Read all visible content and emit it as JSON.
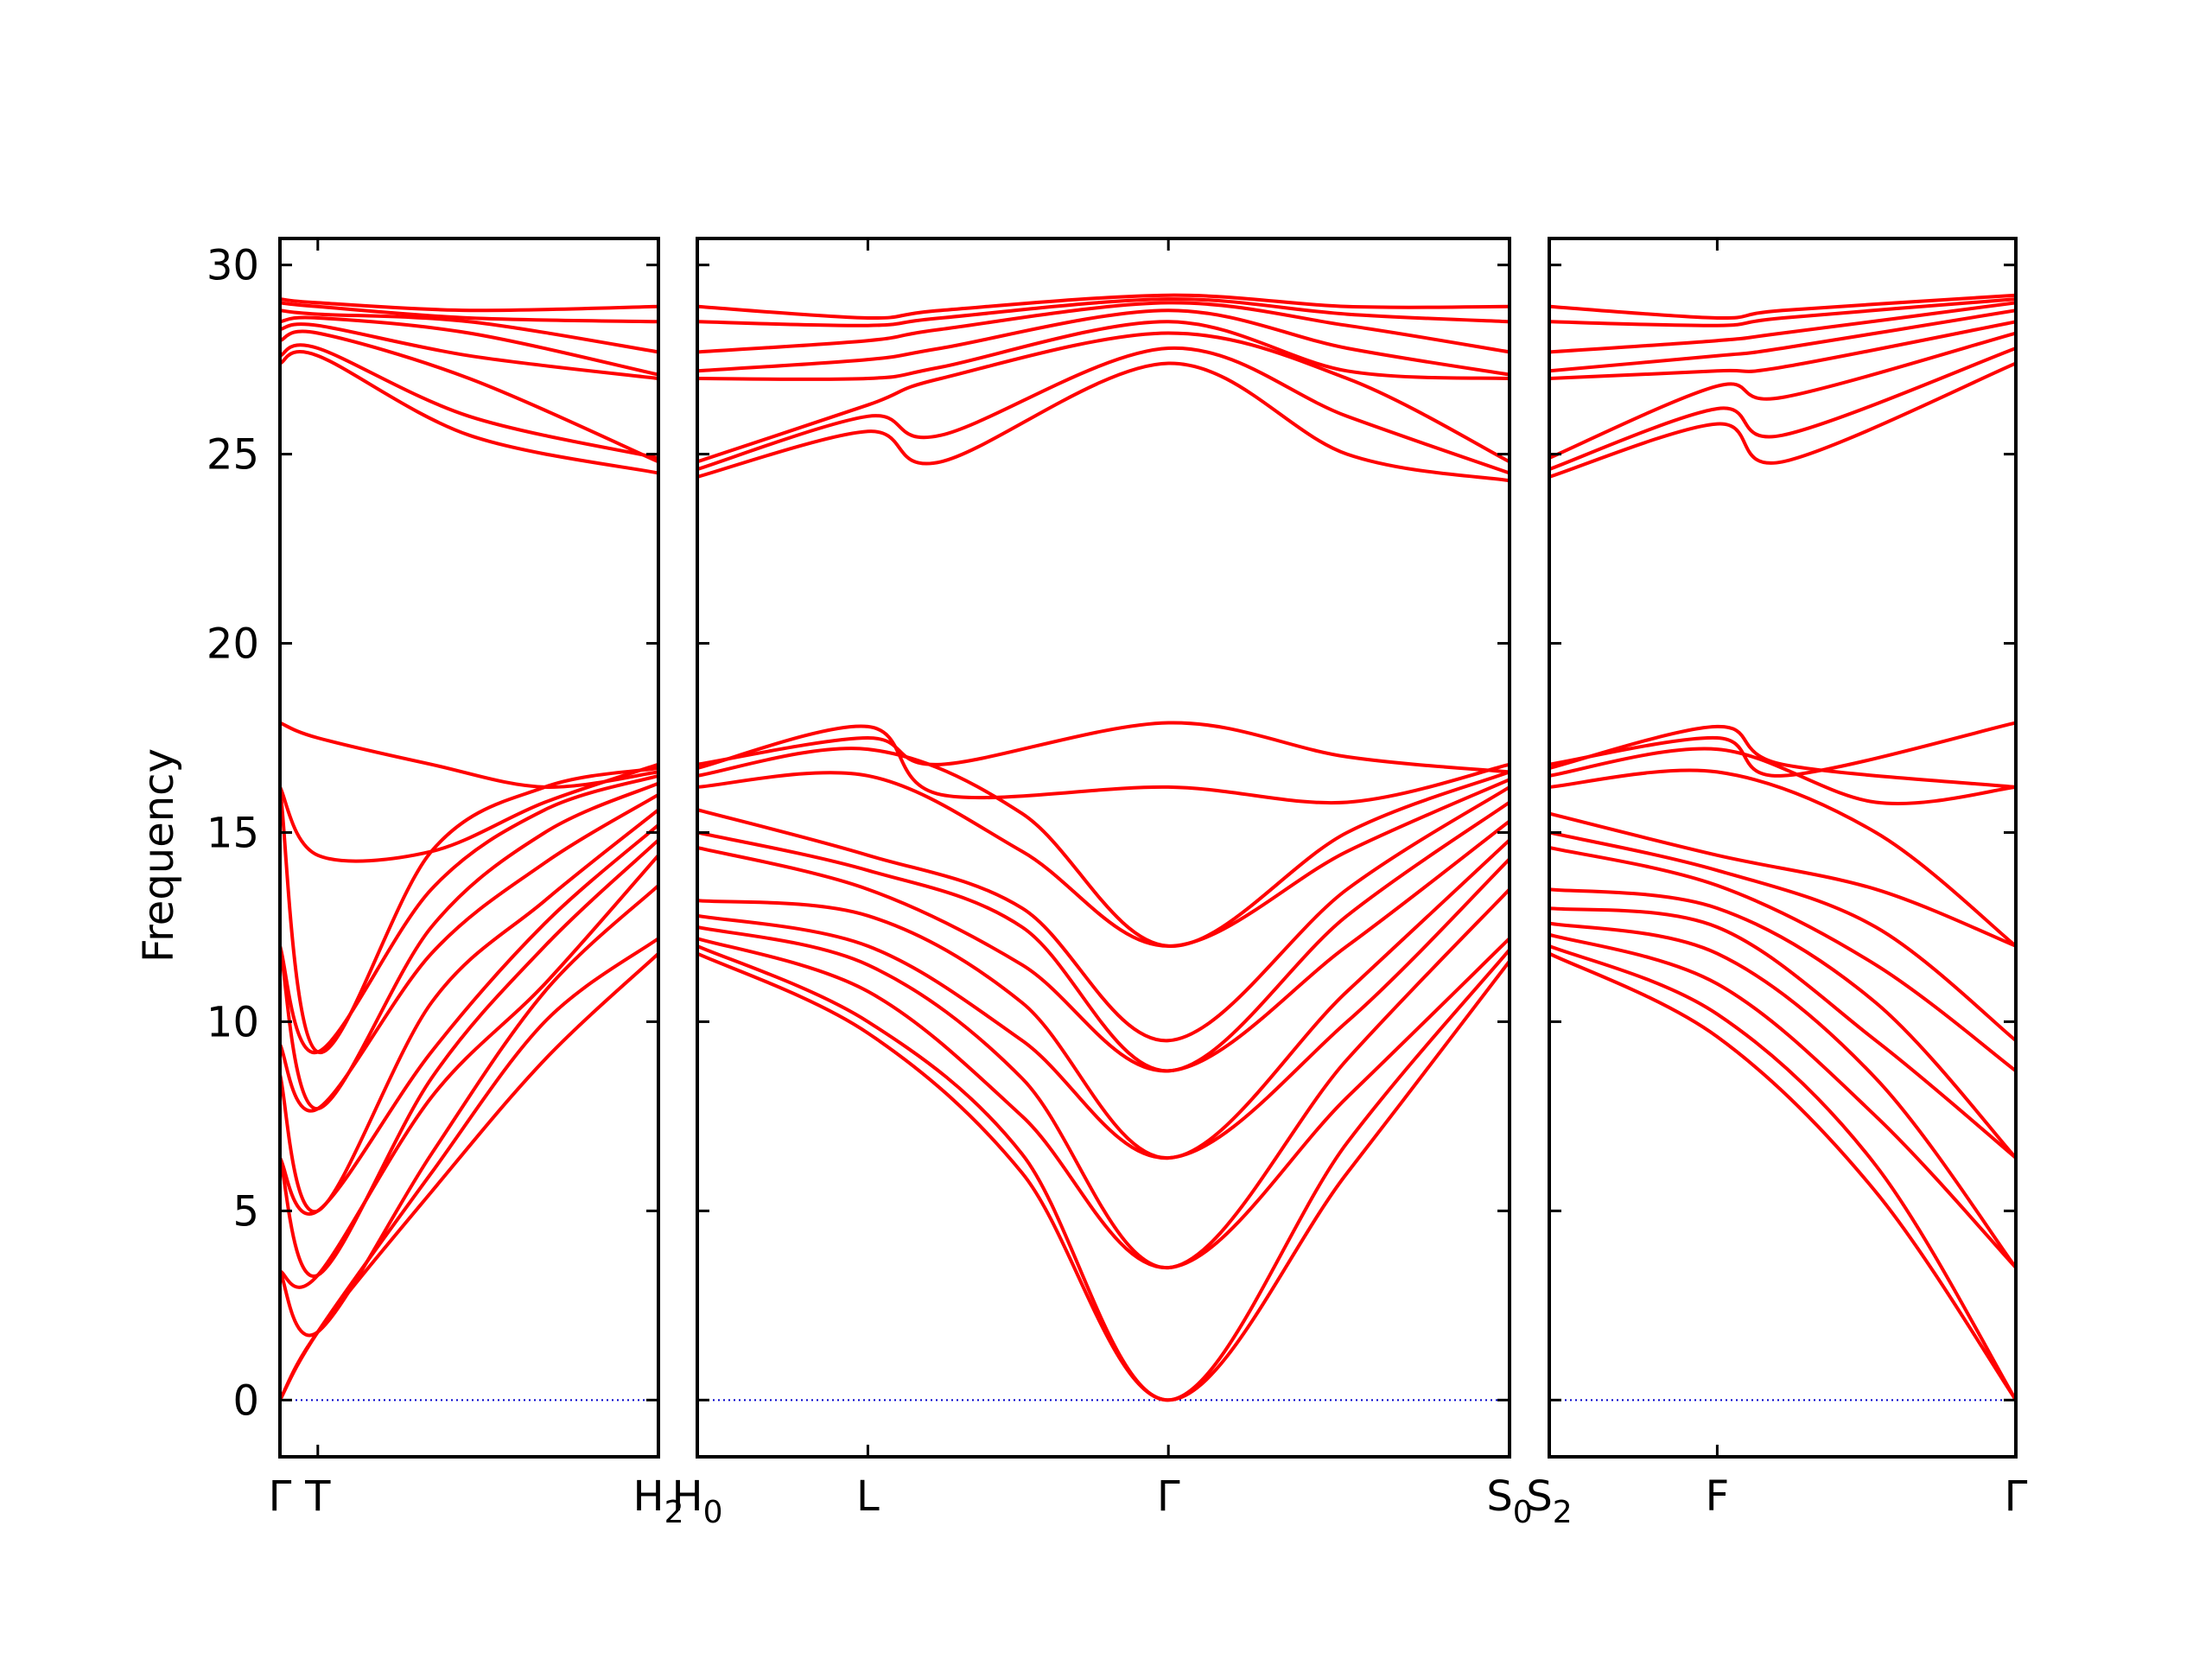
{
  "chart_data": {
    "type": "line",
    "title": "",
    "xlabel": "",
    "ylabel": "Frequency",
    "ylim": [
      -1.5,
      30.7
    ],
    "yticks": [
      0,
      5,
      10,
      15,
      20,
      25,
      30
    ],
    "grid": false,
    "zero_line": {
      "y": 0,
      "color": "#0000cc",
      "style": "dotted"
    },
    "colors": {
      "band": "#ff0000",
      "frame": "#000000"
    },
    "panels": [
      {
        "name": "panel-1",
        "xlim": [
          0,
          1
        ],
        "xticks": [
          {
            "x": 0.0,
            "label": "Γ"
          },
          {
            "x": 0.1,
            "label": "T"
          },
          {
            "x": 1.0,
            "label": "H",
            "sub": "2"
          }
        ],
        "bands": [
          {
            "x": [
              0,
              0.1,
              0.4,
              0.7,
              1.0
            ],
            "y": [
              0,
              1.8,
              5.5,
              9.0,
              11.8
            ]
          },
          {
            "x": [
              0,
              0.1,
              0.4,
              0.7,
              1.0
            ],
            "y": [
              0,
              1.8,
              6.0,
              10.0,
              12.2
            ]
          },
          {
            "x": [
              0,
              0.1,
              0.4,
              0.7,
              1.0
            ],
            "y": [
              3.4,
              1.8,
              6.5,
              10.8,
              13.6
            ]
          },
          {
            "x": [
              0,
              0.1,
              0.4,
              0.7,
              1.0
            ],
            "y": [
              3.4,
              3.3,
              8.0,
              11.0,
              14.4
            ]
          },
          {
            "x": [
              0,
              0.1,
              0.4,
              0.7,
              1.0
            ],
            "y": [
              6.4,
              3.3,
              8.5,
              12.0,
              14.8
            ]
          },
          {
            "x": [
              0,
              0.1,
              0.4,
              0.7,
              1.0
            ],
            "y": [
              6.4,
              5.0,
              9.2,
              12.6,
              15.2
            ]
          },
          {
            "x": [
              0,
              0.1,
              0.4,
              0.7,
              1.0
            ],
            "y": [
              8.6,
              5.0,
              10.5,
              13.2,
              15.6
            ]
          },
          {
            "x": [
              0,
              0.1,
              0.4,
              0.7,
              1.0
            ],
            "y": [
              9.4,
              7.7,
              11.8,
              14.2,
              16.0
            ]
          },
          {
            "x": [
              0,
              0.1,
              0.4,
              0.7,
              1.0
            ],
            "y": [
              12.0,
              7.7,
              12.5,
              15.0,
              16.3
            ]
          },
          {
            "x": [
              0,
              0.1,
              0.4,
              0.7,
              1.0
            ],
            "y": [
              12.0,
              9.2,
              13.5,
              15.6,
              16.5
            ]
          },
          {
            "x": [
              0,
              0.1,
              0.4,
              0.7,
              1.0
            ],
            "y": [
              16.2,
              9.2,
              14.5,
              16.2,
              16.7
            ]
          },
          {
            "x": [
              0,
              0.1,
              0.4,
              0.7,
              1.0
            ],
            "y": [
              16.2,
              14.4,
              14.5,
              15.8,
              16.8
            ]
          },
          {
            "x": [
              0,
              0.1,
              0.4,
              0.7,
              1.0
            ],
            "y": [
              17.9,
              17.5,
              16.8,
              16.2,
              16.6
            ]
          },
          {
            "x": [
              0,
              0.1,
              0.5,
              1.0
            ],
            "y": [
              27.4,
              27.6,
              25.5,
              24.5
            ]
          },
          {
            "x": [
              0,
              0.1,
              0.5,
              1.0
            ],
            "y": [
              27.6,
              27.8,
              26.0,
              24.9
            ]
          },
          {
            "x": [
              0,
              0.1,
              0.5,
              1.0
            ],
            "y": [
              28.0,
              28.2,
              27.0,
              24.8
            ]
          },
          {
            "x": [
              0,
              0.1,
              0.5,
              1.0
            ],
            "y": [
              28.3,
              28.4,
              27.6,
              27.0
            ]
          },
          {
            "x": [
              0,
              0.1,
              0.5,
              1.0
            ],
            "y": [
              28.5,
              28.6,
              28.2,
              27.1
            ]
          },
          {
            "x": [
              0,
              0.1,
              0.5,
              1.0
            ],
            "y": [
              28.8,
              28.7,
              28.5,
              27.7
            ]
          },
          {
            "x": [
              0,
              0.1,
              0.5,
              1.0
            ],
            "y": [
              29.0,
              28.9,
              28.6,
              28.5
            ]
          },
          {
            "x": [
              0,
              0.1,
              0.5,
              1.0
            ],
            "y": [
              29.1,
              29.0,
              28.8,
              28.9
            ]
          }
        ]
      },
      {
        "name": "panel-2",
        "xlim": [
          0,
          1
        ],
        "xticks": [
          {
            "x": 0.0,
            "label": "H",
            "sub": "0"
          },
          {
            "x": 0.21,
            "label": "L"
          },
          {
            "x": 0.58,
            "label": "Γ"
          },
          {
            "x": 1.0,
            "label": "S",
            "sub": "0"
          }
        ],
        "bands": [
          {
            "x": [
              0,
              0.21,
              0.4,
              0.58,
              0.8,
              1.0
            ],
            "y": [
              11.8,
              9.7,
              6.0,
              0,
              6.0,
              11.6
            ]
          },
          {
            "x": [
              0,
              0.21,
              0.4,
              0.58,
              0.8,
              1.0
            ],
            "y": [
              12.0,
              10.0,
              6.5,
              0,
              6.8,
              11.9
            ]
          },
          {
            "x": [
              0,
              0.21,
              0.4,
              0.58,
              0.8,
              1.0
            ],
            "y": [
              12.2,
              10.8,
              7.5,
              3.5,
              8.0,
              12.2
            ]
          },
          {
            "x": [
              0,
              0.21,
              0.4,
              0.58,
              0.8,
              1.0
            ],
            "y": [
              12.5,
              11.5,
              8.5,
              3.5,
              9.0,
              13.5
            ]
          },
          {
            "x": [
              0,
              0.21,
              0.4,
              0.58,
              0.8,
              1.0
            ],
            "y": [
              12.8,
              12.0,
              9.5,
              6.4,
              10.0,
              14.3
            ]
          },
          {
            "x": [
              0,
              0.21,
              0.4,
              0.58,
              0.8,
              1.0
            ],
            "y": [
              13.2,
              12.8,
              10.5,
              6.4,
              10.8,
              14.8
            ]
          },
          {
            "x": [
              0,
              0.21,
              0.4,
              0.58,
              0.8,
              1.0
            ],
            "y": [
              14.6,
              13.5,
              11.5,
              8.7,
              12.0,
              15.3
            ]
          },
          {
            "x": [
              0,
              0.21,
              0.4,
              0.58,
              0.8,
              1.0
            ],
            "y": [
              15.0,
              14.0,
              12.5,
              8.7,
              12.8,
              15.8
            ]
          },
          {
            "x": [
              0,
              0.21,
              0.4,
              0.58,
              0.8,
              1.0
            ],
            "y": [
              15.6,
              14.4,
              13.0,
              9.5,
              13.5,
              16.2
            ]
          },
          {
            "x": [
              0,
              0.21,
              0.4,
              0.58,
              0.8,
              1.0
            ],
            "y": [
              16.2,
              16.5,
              14.5,
              12.0,
              14.5,
              16.4
            ]
          },
          {
            "x": [
              0,
              0.21,
              0.4,
              0.58,
              0.8,
              1.0
            ],
            "y": [
              16.5,
              17.2,
              15.5,
              12.0,
              15.0,
              16.6
            ]
          },
          {
            "x": [
              0,
              0.21,
              0.3,
              0.58,
              0.8,
              1.0
            ],
            "y": [
              16.7,
              17.8,
              16.0,
              16.2,
              15.8,
              16.8
            ]
          },
          {
            "x": [
              0,
              0.21,
              0.3,
              0.58,
              0.8,
              1.0
            ],
            "y": [
              16.8,
              17.5,
              16.8,
              17.9,
              17.0,
              16.6
            ]
          },
          {
            "x": [
              0,
              0.21,
              0.3,
              0.58,
              0.8,
              1.0
            ],
            "y": [
              24.4,
              25.6,
              24.8,
              27.4,
              25.0,
              24.3
            ]
          },
          {
            "x": [
              0,
              0.21,
              0.3,
              0.58,
              0.8,
              1.0
            ],
            "y": [
              24.6,
              26.0,
              25.5,
              27.8,
              26.0,
              24.5
            ]
          },
          {
            "x": [
              0,
              0.21,
              0.3,
              0.58,
              0.8,
              1.0
            ],
            "y": [
              24.8,
              26.3,
              27.0,
              28.2,
              27.0,
              24.8
            ]
          },
          {
            "x": [
              0,
              0.21,
              0.3,
              0.58,
              0.8,
              1.0
            ],
            "y": [
              27.0,
              27.0,
              27.3,
              28.5,
              27.2,
              27.0
            ]
          },
          {
            "x": [
              0,
              0.21,
              0.3,
              0.58,
              0.8,
              1.0
            ],
            "y": [
              27.2,
              27.5,
              27.8,
              28.8,
              27.8,
              27.1
            ]
          },
          {
            "x": [
              0,
              0.21,
              0.3,
              0.58,
              0.8,
              1.0
            ],
            "y": [
              27.7,
              28.0,
              28.3,
              29.0,
              28.4,
              27.7
            ]
          },
          {
            "x": [
              0,
              0.21,
              0.3,
              0.58,
              0.8,
              1.0
            ],
            "y": [
              28.5,
              28.4,
              28.6,
              29.1,
              28.7,
              28.5
            ]
          },
          {
            "x": [
              0,
              0.21,
              0.3,
              0.58,
              0.8,
              1.0
            ],
            "y": [
              28.9,
              28.6,
              28.8,
              29.2,
              28.9,
              28.9
            ]
          }
        ]
      },
      {
        "name": "panel-3",
        "xlim": [
          0,
          1
        ],
        "xticks": [
          {
            "x": 0.0,
            "label": "S",
            "sub": "2"
          },
          {
            "x": 0.36,
            "label": "F"
          },
          {
            "x": 1.0,
            "label": "Γ"
          }
        ],
        "bands": [
          {
            "x": [
              0,
              0.36,
              0.7,
              1.0
            ],
            "y": [
              11.8,
              9.6,
              5.5,
              0
            ]
          },
          {
            "x": [
              0,
              0.36,
              0.7,
              1.0
            ],
            "y": [
              12.0,
              10.2,
              6.2,
              0
            ]
          },
          {
            "x": [
              0,
              0.36,
              0.7,
              1.0
            ],
            "y": [
              12.3,
              11.0,
              7.5,
              3.5
            ]
          },
          {
            "x": [
              0,
              0.36,
              0.7,
              1.0
            ],
            "y": [
              12.6,
              11.8,
              8.5,
              3.5
            ]
          },
          {
            "x": [
              0,
              0.36,
              0.7,
              1.0
            ],
            "y": [
              13.0,
              12.5,
              9.5,
              6.4
            ]
          },
          {
            "x": [
              0,
              0.36,
              0.7,
              1.0
            ],
            "y": [
              13.5,
              13.0,
              10.5,
              6.4
            ]
          },
          {
            "x": [
              0,
              0.36,
              0.7,
              1.0
            ],
            "y": [
              14.6,
              13.6,
              11.5,
              8.7
            ]
          },
          {
            "x": [
              0,
              0.36,
              0.7,
              1.0
            ],
            "y": [
              15.0,
              14.0,
              12.5,
              9.5
            ]
          },
          {
            "x": [
              0,
              0.36,
              0.7,
              1.0
            ],
            "y": [
              15.5,
              14.4,
              13.5,
              12.0
            ]
          },
          {
            "x": [
              0,
              0.36,
              0.7,
              1.0
            ],
            "y": [
              16.2,
              16.6,
              15.0,
              12.0
            ]
          },
          {
            "x": [
              0,
              0.36,
              0.7,
              1.0
            ],
            "y": [
              16.5,
              17.2,
              15.8,
              16.2
            ]
          },
          {
            "x": [
              0,
              0.36,
              0.5,
              1.0
            ],
            "y": [
              16.7,
              17.8,
              16.8,
              16.2
            ]
          },
          {
            "x": [
              0,
              0.36,
              0.5,
              1.0
            ],
            "y": [
              16.8,
              17.5,
              16.5,
              17.9
            ]
          },
          {
            "x": [
              0,
              0.36,
              0.5,
              1.0
            ],
            "y": [
              24.4,
              25.8,
              24.8,
              27.4
            ]
          },
          {
            "x": [
              0,
              0.36,
              0.5,
              1.0
            ],
            "y": [
              24.6,
              26.2,
              25.5,
              27.8
            ]
          },
          {
            "x": [
              0,
              0.36,
              0.5,
              1.0
            ],
            "y": [
              24.9,
              26.8,
              26.5,
              28.2
            ]
          },
          {
            "x": [
              0,
              0.36,
              0.5,
              1.0
            ],
            "y": [
              27.0,
              27.2,
              27.3,
              28.5
            ]
          },
          {
            "x": [
              0,
              0.36,
              0.5,
              1.0
            ],
            "y": [
              27.2,
              27.6,
              27.8,
              28.8
            ]
          },
          {
            "x": [
              0,
              0.36,
              0.5,
              1.0
            ],
            "y": [
              27.7,
              28.0,
              28.2,
              29.0
            ]
          },
          {
            "x": [
              0,
              0.36,
              0.5,
              1.0
            ],
            "y": [
              28.5,
              28.4,
              28.6,
              29.1
            ]
          },
          {
            "x": [
              0,
              0.36,
              0.5,
              1.0
            ],
            "y": [
              28.9,
              28.6,
              28.8,
              29.2
            ]
          }
        ]
      }
    ]
  }
}
